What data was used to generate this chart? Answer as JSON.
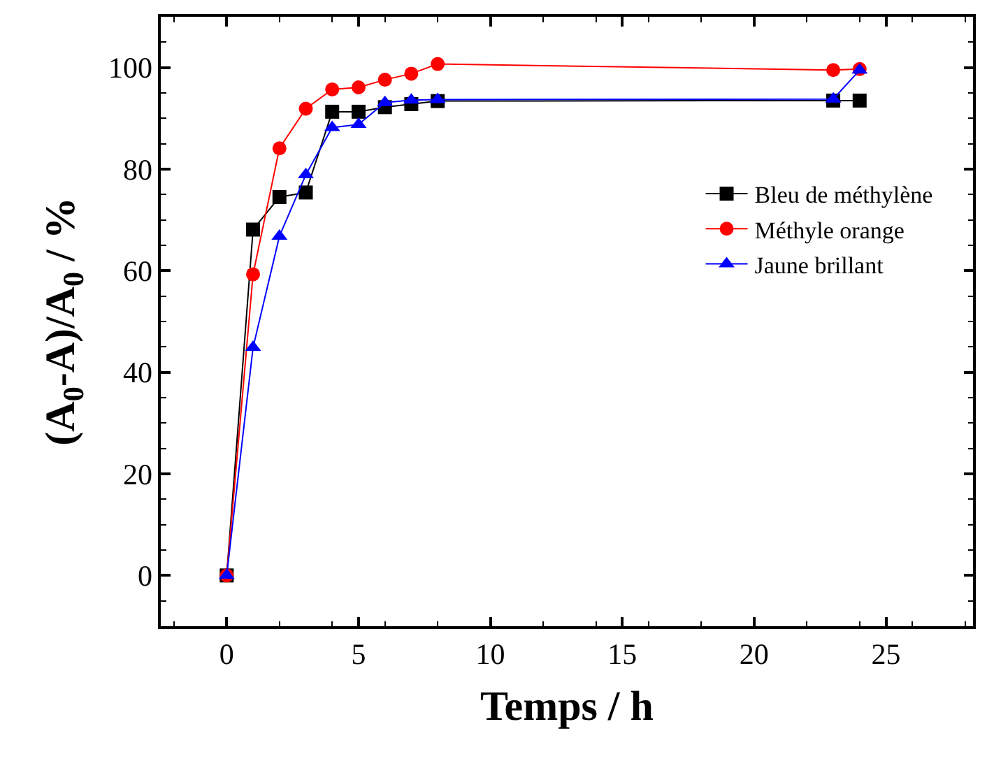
{
  "chart_data": {
    "type": "line",
    "xlabel": "Temps / h",
    "ylabel": "(A$_{0}$-A)/A$_{0}$ / %",
    "x": [
      0,
      1,
      2,
      3,
      4,
      5,
      6,
      7,
      8,
      23,
      24
    ],
    "series": [
      {
        "name": "Bleu de méthylène",
        "color": "#000000",
        "marker": "square",
        "values": [
          0,
          68.1,
          74.5,
          75.4,
          91.3,
          91.3,
          92.2,
          92.8,
          93.4,
          93.5,
          93.5
        ]
      },
      {
        "name": "Méthyle orange",
        "color": "#ff0000",
        "marker": "circle",
        "values": [
          0,
          59.3,
          84.1,
          91.9,
          95.7,
          96.1,
          97.6,
          98.8,
          100.7,
          99.5,
          99.7
        ]
      },
      {
        "name": "Jaune brillant",
        "color": "#0000ff",
        "marker": "triangle",
        "values": [
          0,
          44.9,
          66.8,
          78.9,
          88.2,
          88.8,
          93.1,
          93.6,
          93.7,
          93.8,
          99.5
        ]
      }
    ],
    "xlim": [
      -2.5,
      28.3
    ],
    "ylim": [
      -10,
      110
    ],
    "xticks": [
      0,
      5,
      10,
      15,
      20,
      25
    ],
    "yticks": [
      0,
      20,
      40,
      60,
      80,
      100
    ],
    "legend": "top right"
  }
}
